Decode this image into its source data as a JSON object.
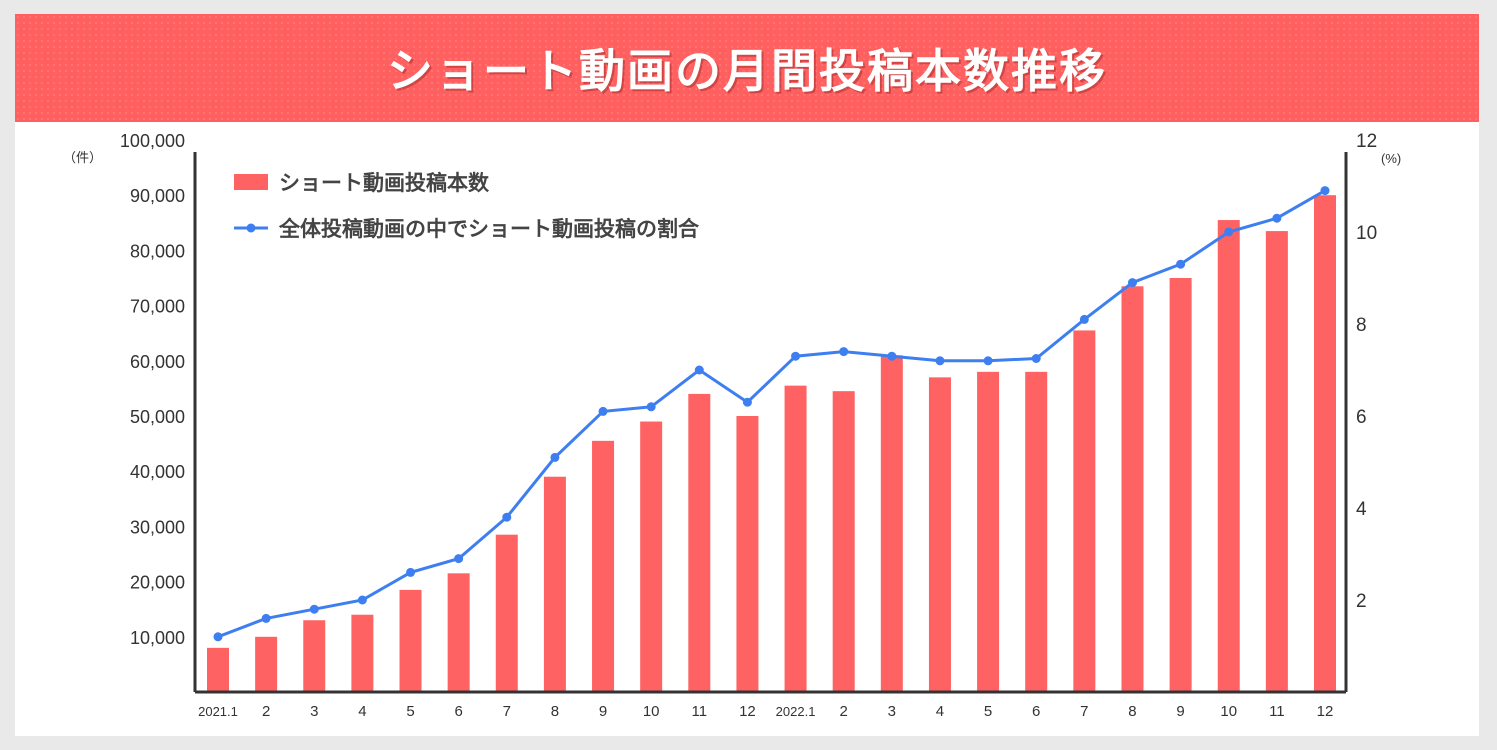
{
  "chart_data": {
    "type": "bar",
    "title": "ショート動画の月間投稿本数推移",
    "categories": [
      "2021.1",
      "2",
      "3",
      "4",
      "5",
      "6",
      "7",
      "8",
      "9",
      "10",
      "11",
      "12",
      "2022.1",
      "2",
      "3",
      "4",
      "5",
      "6",
      "7",
      "8",
      "9",
      "10",
      "11",
      "12"
    ],
    "series": [
      {
        "name": "ショート動画投稿本数",
        "type": "bar",
        "axis": "left",
        "values": [
          8000,
          10000,
          13000,
          14000,
          18500,
          21500,
          28500,
          39000,
          45500,
          49000,
          54000,
          50000,
          55500,
          54500,
          61000,
          57000,
          58000,
          58000,
          65500,
          73500,
          75000,
          85500,
          83500,
          90000
        ]
      },
      {
        "name": "全体投稿動画の中でショート動画投稿の割合",
        "type": "line",
        "axis": "right",
        "values": [
          1.2,
          1.6,
          1.8,
          2.0,
          2.6,
          2.9,
          3.8,
          5.1,
          6.1,
          6.2,
          7.0,
          6.3,
          7.3,
          7.4,
          7.3,
          7.2,
          7.2,
          7.25,
          8.1,
          8.9,
          9.3,
          10.0,
          10.3,
          10.9
        ]
      }
    ],
    "y_left": {
      "unit": "（件）",
      "ticks": [
        "10,000",
        "20,000",
        "30,000",
        "40,000",
        "50,000",
        "60,000",
        "70,000",
        "80,000",
        "90,000",
        "100,000"
      ],
      "ylim": [
        0,
        100000
      ]
    },
    "y_right": {
      "unit": "(%)",
      "ticks": [
        "2",
        "4",
        "6",
        "8",
        "10",
        "12"
      ],
      "ylim": [
        0,
        12
      ]
    },
    "grid": false,
    "legend_position": "top-left",
    "colors": {
      "bar": "#ff6262",
      "line": "#3d7ff0",
      "axis": "#333333"
    }
  }
}
